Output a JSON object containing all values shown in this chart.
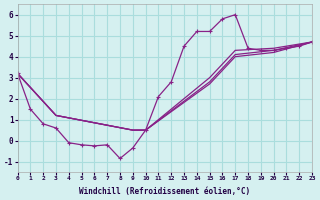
{
  "xlabel": "Windchill (Refroidissement éolien,°C)",
  "ylabel": "",
  "background_color": "#d5f0f0",
  "grid_color": "#aadddd",
  "line_color": "#882288",
  "xlim": [
    0,
    23
  ],
  "ylim": [
    -1.5,
    6.5
  ],
  "xticks": [
    0,
    1,
    2,
    3,
    4,
    5,
    6,
    7,
    8,
    9,
    10,
    11,
    12,
    13,
    14,
    15,
    16,
    17,
    18,
    19,
    20,
    21,
    22,
    23
  ],
  "yticks": [
    -1,
    0,
    1,
    2,
    3,
    4,
    5,
    6
  ],
  "curve1_x": [
    0,
    1,
    2,
    3,
    4,
    5,
    6,
    7,
    8,
    9,
    10,
    11,
    12,
    13,
    14,
    15,
    16,
    17,
    18,
    19,
    20,
    21,
    22,
    23
  ],
  "curve1_y": [
    3.2,
    1.5,
    0.8,
    0.6,
    -0.1,
    -0.2,
    -0.25,
    -0.2,
    -0.85,
    -0.35,
    0.5,
    2.1,
    2.8,
    4.5,
    5.2,
    5.2,
    5.8,
    6.0,
    4.4,
    4.3,
    4.3,
    4.4,
    4.5,
    4.7
  ],
  "curve2_x": [
    0,
    3,
    9,
    10,
    15,
    17,
    20,
    23
  ],
  "curve2_y": [
    3.2,
    1.2,
    0.5,
    0.5,
    3.0,
    4.3,
    4.4,
    4.7
  ],
  "curve3_x": [
    0,
    3,
    9,
    10,
    15,
    17,
    20,
    23
  ],
  "curve3_y": [
    3.2,
    1.2,
    0.5,
    0.5,
    2.8,
    4.1,
    4.3,
    4.7
  ],
  "curve4_x": [
    0,
    3,
    9,
    10,
    15,
    17,
    20,
    23
  ],
  "curve4_y": [
    3.2,
    1.2,
    0.5,
    0.5,
    2.7,
    4.0,
    4.2,
    4.7
  ]
}
